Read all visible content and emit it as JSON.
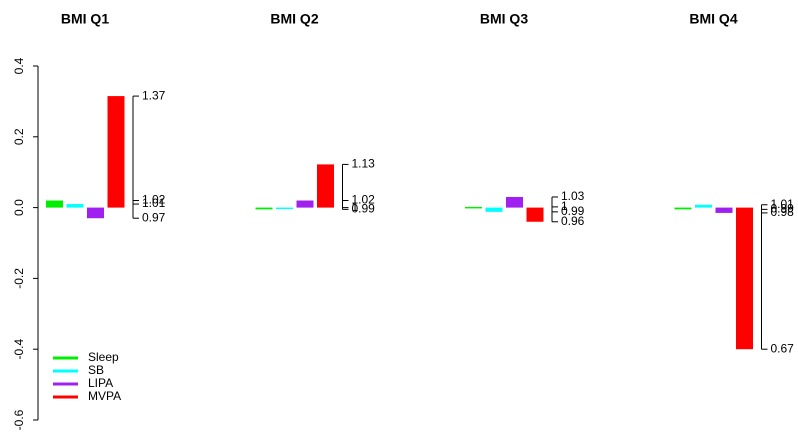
{
  "legend": {
    "entries": [
      {
        "name": "Sleep",
        "color": "#00ee00"
      },
      {
        "name": "SB",
        "color": "#00ffff"
      },
      {
        "name": "LIPA",
        "color": "#a020f0"
      },
      {
        "name": "MVPA",
        "color": "#ff0000"
      }
    ]
  },
  "chart_data": [
    {
      "type": "bar",
      "title": "BMI Q1",
      "values": [
        0.02,
        0.01,
        -0.03,
        0.315
      ],
      "ratios": [
        1.02,
        1.01,
        0.97,
        1.37
      ],
      "ylim": [
        -0.6,
        0.4
      ],
      "yticks": [
        -0.6,
        -0.4,
        -0.2,
        {
          "value": 0,
          "label": "0.0"
        },
        0.2,
        0.4
      ]
    },
    {
      "type": "bar",
      "title": "BMI Q2",
      "values": [
        -0.005,
        0,
        0.02,
        0.122
      ],
      "ratios": [
        0.99,
        1,
        1.02,
        1.13
      ],
      "ylim": [
        -0.6,
        0.4
      ]
    },
    {
      "type": "bar",
      "title": "BMI Q3",
      "values": [
        0.002,
        -0.012,
        0.03,
        -0.04
      ],
      "ratios": [
        1,
        0.99,
        1.03,
        0.96
      ],
      "ylim": [
        -0.6,
        0.4
      ]
    },
    {
      "type": "bar",
      "title": "BMI Q4",
      "values": [
        -0.005,
        0.008,
        -0.015,
        -0.4
      ],
      "ratios": [
        0.99,
        1.01,
        0.98,
        0.67
      ],
      "ylim": [
        -0.6,
        0.4
      ]
    }
  ]
}
